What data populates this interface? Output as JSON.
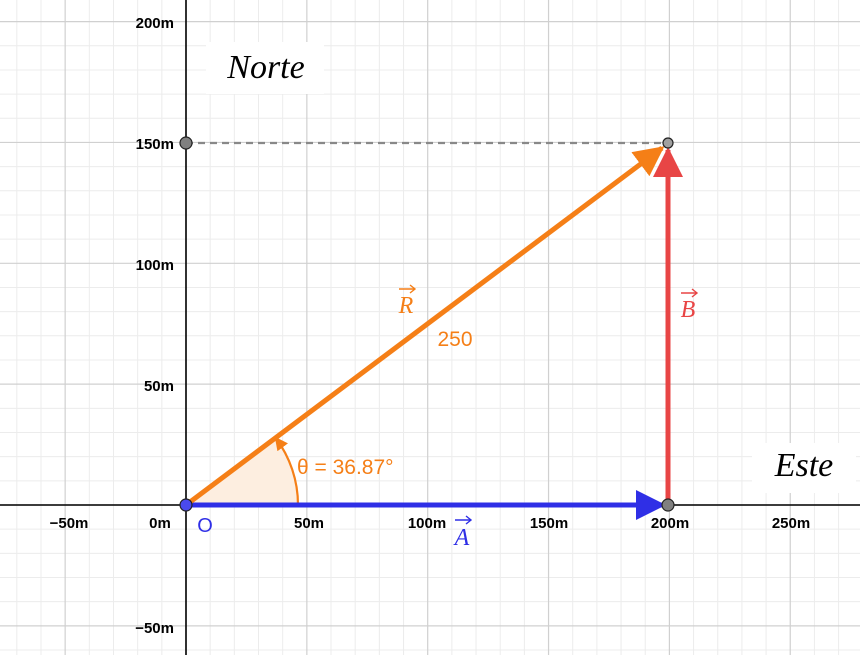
{
  "axes": {
    "x_ticks": [
      "−50m",
      "0m",
      "50m",
      "100m",
      "150m",
      "200m",
      "250m"
    ],
    "y_ticks": [
      "200m",
      "150m",
      "100m",
      "50m",
      "−50m"
    ]
  },
  "labels": {
    "north": "Norte",
    "east": "Este",
    "origin": "O",
    "vector_a": "A",
    "vector_b": "B",
    "vector_r": "R",
    "magnitude_r": "250",
    "angle": "θ = 36.87°"
  },
  "vectors": {
    "A": {
      "from": [
        0,
        0
      ],
      "to": [
        200,
        0
      ]
    },
    "B": {
      "from": [
        200,
        0
      ],
      "to": [
        200,
        150
      ]
    },
    "R": {
      "from": [
        0,
        0
      ],
      "to": [
        200,
        150
      ],
      "magnitude": 250
    },
    "angle_deg": 36.87
  },
  "points": [
    {
      "name": "origin",
      "x": 0,
      "y": 0
    },
    {
      "name": "east-point",
      "x": 200,
      "y": 0
    },
    {
      "name": "end-point",
      "x": 200,
      "y": 150
    },
    {
      "name": "y-axis-150-point",
      "x": 0,
      "y": 150
    }
  ],
  "colors": {
    "vector_a": "#2f2fe6",
    "vector_b": "#e84545",
    "vector_r": "#f57f17",
    "angle_fill": "#fdeee0",
    "dashed": "#888888",
    "grid_major": "#d0d0d0",
    "grid_minor": "#ececec"
  }
}
